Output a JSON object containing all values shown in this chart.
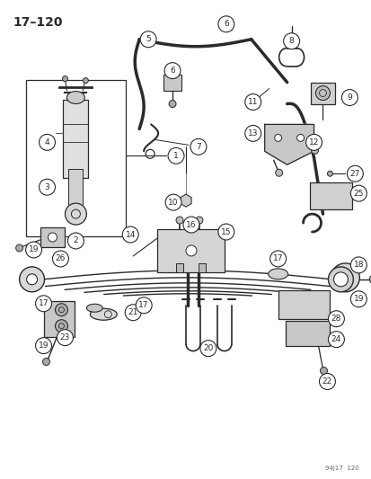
{
  "bg_color": "#ffffff",
  "line_color": "#2a2a2a",
  "title": "17–120",
  "footer": "94J17  120",
  "fig_width": 4.14,
  "fig_height": 5.33,
  "dpi": 100
}
